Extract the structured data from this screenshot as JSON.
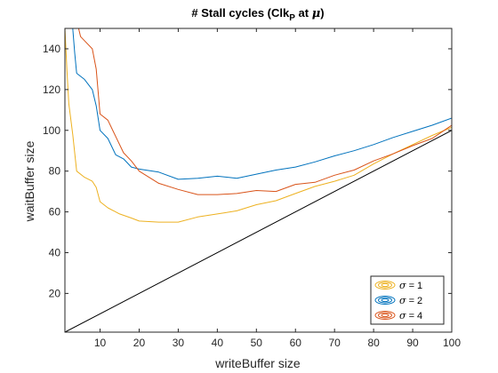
{
  "chart_data": {
    "type": "line",
    "title": {
      "prefix": "# Stall cycles (Clk",
      "subscript": "P",
      "middle": " at ",
      "mu": "μ",
      "suffix": ")"
    },
    "xlabel": "writeBuffer size",
    "ylabel": "waitBuffer size",
    "xlim": [
      1,
      100
    ],
    "ylim": [
      1,
      150
    ],
    "xticks": [
      10,
      20,
      30,
      40,
      50,
      60,
      70,
      80,
      90,
      100
    ],
    "yticks": [
      20,
      40,
      60,
      80,
      100,
      120,
      140
    ],
    "grid": false,
    "legend_position": "bottom-right",
    "reference_line": {
      "name": "y = x",
      "x": [
        1,
        100
      ],
      "y": [
        1,
        100
      ],
      "color": "#000000"
    },
    "series": [
      {
        "name": "σ = 1",
        "sigma_symbol": "σ",
        "label_suffix": " = 1",
        "color": "#EDB120",
        "x": [
          1,
          1.5,
          2,
          3,
          4,
          6,
          8,
          9,
          10,
          12,
          15,
          18,
          20,
          25,
          30,
          35,
          40,
          45,
          50,
          55,
          60,
          65,
          70,
          75,
          80,
          85,
          90,
          95,
          100
        ],
        "y": [
          150,
          130,
          113,
          98,
          80,
          77,
          75,
          72,
          65,
          62,
          59,
          57,
          55.5,
          55,
          55,
          57.5,
          59,
          60.5,
          63.5,
          65.5,
          69,
          72.5,
          75,
          78,
          83.5,
          88.5,
          93,
          97.5,
          101.5
        ]
      },
      {
        "name": "σ = 2",
        "sigma_symbol": "σ",
        "label_suffix": " = 2",
        "color": "#0072BD",
        "x": [
          3,
          3.5,
          4,
          6,
          8,
          9,
          10,
          12,
          14,
          16,
          18,
          20,
          25,
          30,
          35,
          40,
          45,
          50,
          55,
          60,
          65,
          70,
          75,
          80,
          85,
          90,
          95,
          100
        ],
        "y": [
          150,
          138,
          128,
          125,
          120,
          112,
          100,
          96,
          88,
          86,
          82,
          81,
          79.5,
          76,
          76.5,
          77.5,
          76.5,
          78.5,
          80.5,
          82,
          84.5,
          87.5,
          90,
          93,
          96.5,
          99.5,
          102.5,
          106
        ]
      },
      {
        "name": "σ = 4",
        "sigma_symbol": "σ",
        "label_suffix": " = 4",
        "color": "#D95319",
        "x": [
          4.5,
          5,
          6,
          8,
          9,
          10,
          12,
          14,
          16,
          18,
          20,
          25,
          30,
          35,
          40,
          45,
          50,
          55,
          60,
          65,
          70,
          75,
          80,
          85,
          90,
          95,
          100
        ],
        "y": [
          150,
          146,
          144,
          140,
          130,
          108,
          105,
          97,
          89,
          85,
          80,
          74,
          71,
          68.5,
          68.5,
          69,
          70.5,
          70,
          73.5,
          74.5,
          78,
          80.5,
          85,
          88.5,
          92.5,
          96,
          102.5
        ]
      }
    ]
  }
}
